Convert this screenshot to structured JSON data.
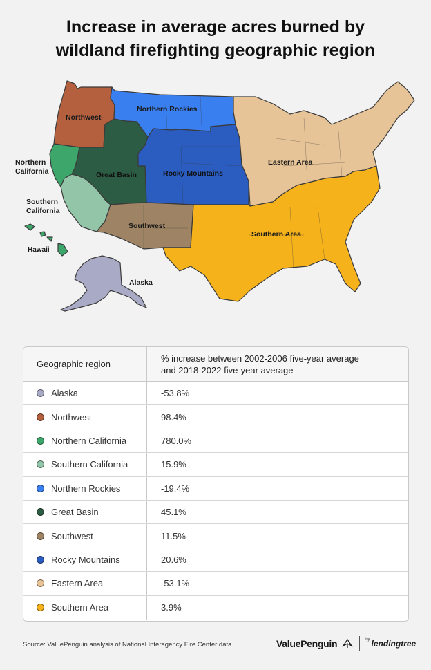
{
  "title": {
    "line1": "Increase in average acres burned by",
    "line2": "wildland firefighting geographic region"
  },
  "map": {
    "regions": {
      "northwest": {
        "label": "Northwest",
        "color": "#b4603f"
      },
      "northern_rockies": {
        "label": "Northern Rockies",
        "color": "#3a7fef"
      },
      "northern_california": {
        "label_line1": "Northern",
        "label_line2": "California",
        "color": "#3da66b"
      },
      "great_basin": {
        "label": "Great Basin",
        "color": "#2c5c43"
      },
      "rocky_mountains": {
        "label": "Rocky Mountains",
        "color": "#2b5cc0"
      },
      "eastern_area": {
        "label": "Eastern Area",
        "color": "#e7c497"
      },
      "southern_california": {
        "label_line1": "Southern",
        "label_line2": "California",
        "color": "#93c6a8"
      },
      "southwest": {
        "label": "Southwest",
        "color": "#9e8464"
      },
      "southern_area": {
        "label": "Southern Area",
        "color": "#f6b21b"
      },
      "hawaii": {
        "label": "Hawaii",
        "color": "#3da66b"
      },
      "alaska": {
        "label": "Alaska",
        "color": "#a9abc6"
      }
    }
  },
  "table": {
    "header_region": "Geographic region",
    "header_value_line1": "% increase between 2002-2006 five-year average",
    "header_value_line2": "and 2018-2022 five-year average",
    "rows": [
      {
        "region": "Alaska",
        "value": "-53.8%",
        "color": "#a9abc6"
      },
      {
        "region": "Northwest",
        "value": "98.4%",
        "color": "#b4603f"
      },
      {
        "region": "Northern California",
        "value": "780.0%",
        "color": "#3da66b"
      },
      {
        "region": "Southern California",
        "value": "15.9%",
        "color": "#93c6a8"
      },
      {
        "region": "Northern Rockies",
        "value": "-19.4%",
        "color": "#3a7fef"
      },
      {
        "region": "Great Basin",
        "value": "45.1%",
        "color": "#2c5c43"
      },
      {
        "region": "Southwest",
        "value": "11.5%",
        "color": "#9e8464"
      },
      {
        "region": "Rocky Mountains",
        "value": "20.6%",
        "color": "#2b5cc0"
      },
      {
        "region": "Eastern Area",
        "value": "-53.1%",
        "color": "#e7c497"
      },
      {
        "region": "Southern Area",
        "value": "3.9%",
        "color": "#f6b21b"
      }
    ]
  },
  "footer": {
    "source": "Source: ValuePenguin analysis of National Interagency Fire Center data.",
    "brand": "ValuePenguin",
    "by": "by",
    "partner": "lendingtree"
  }
}
